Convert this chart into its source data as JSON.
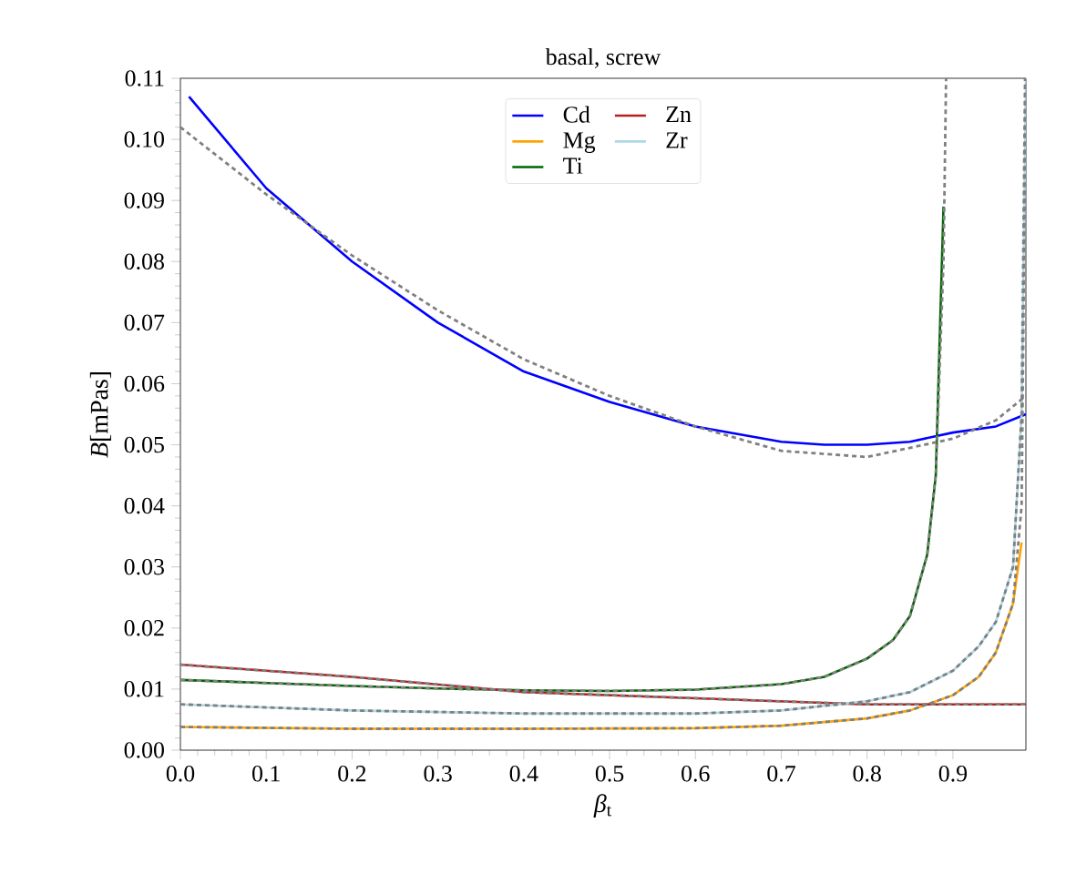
{
  "chart_data": {
    "type": "line",
    "title": "basal, screw",
    "xlabel": "*β*$_{t}$",
    "ylabel": "*B*[mPas]",
    "xlim": [
      0,
      0.985
    ],
    "ylim": [
      0,
      0.11
    ],
    "xticks": [
      {
        "value": 0,
        "label": "0.0"
      },
      {
        "value": 0.1,
        "label": "0.1"
      },
      {
        "value": 0.2,
        "label": "0.2"
      },
      {
        "value": 0.3,
        "label": "0.3"
      },
      {
        "value": 0.4,
        "label": "0.4"
      },
      {
        "value": 0.5,
        "label": "0.5"
      },
      {
        "value": 0.6,
        "label": "0.6"
      },
      {
        "value": 0.7,
        "label": "0.7"
      },
      {
        "value": 0.8,
        "label": "0.8"
      },
      {
        "value": 0.9,
        "label": "0.9"
      }
    ],
    "yticks": [
      {
        "value": 0,
        "label": "0.00"
      },
      {
        "value": 0.01,
        "label": "0.01"
      },
      {
        "value": 0.02,
        "label": "0.02"
      },
      {
        "value": 0.03,
        "label": "0.03"
      },
      {
        "value": 0.04,
        "label": "0.04"
      },
      {
        "value": 0.05,
        "label": "0.05"
      },
      {
        "value": 0.06,
        "label": "0.06"
      },
      {
        "value": 0.07,
        "label": "0.07"
      },
      {
        "value": 0.08,
        "label": "0.08"
      },
      {
        "value": 0.09,
        "label": "0.09"
      },
      {
        "value": 0.1,
        "label": "0.10"
      },
      {
        "value": 0.11,
        "label": "0.11"
      }
    ],
    "legend": "top",
    "line_style": "solid",
    "series": [
      {
        "name": "Cd",
        "color": "#0000ff",
        "x": [
          0.01,
          0.1,
          0.2,
          0.3,
          0.4,
          0.5,
          0.6,
          0.7,
          0.75,
          0.8,
          0.85,
          0.9,
          0.95,
          0.985
        ],
        "values": [
          0.107,
          0.092,
          0.08,
          0.07,
          0.062,
          0.057,
          0.053,
          0.0505,
          0.05,
          0.05,
          0.0505,
          0.052,
          0.053,
          0.055
        ]
      },
      {
        "name": "Mg",
        "color": "#ffa500",
        "x": [
          0,
          0.2,
          0.4,
          0.6,
          0.7,
          0.8,
          0.85,
          0.9,
          0.93,
          0.95,
          0.97,
          0.98
        ],
        "values": [
          0.0038,
          0.0035,
          0.0035,
          0.0036,
          0.004,
          0.0052,
          0.0065,
          0.009,
          0.012,
          0.016,
          0.024,
          0.034
        ]
      },
      {
        "name": "Ti",
        "color": "#006400",
        "x": [
          0,
          0.1,
          0.2,
          0.3,
          0.4,
          0.5,
          0.6,
          0.7,
          0.75,
          0.8,
          0.83,
          0.85,
          0.87,
          0.88,
          0.889
        ],
        "values": [
          0.0115,
          0.011,
          0.0105,
          0.0101,
          0.0098,
          0.0097,
          0.0099,
          0.0108,
          0.012,
          0.015,
          0.018,
          0.022,
          0.032,
          0.045,
          0.089
        ]
      },
      {
        "name": "Zn",
        "color": "#b22222",
        "x": [
          0,
          0.2,
          0.4,
          0.6,
          0.8,
          0.985
        ],
        "values": [
          0.014,
          0.012,
          0.0095,
          0.0085,
          0.0075,
          0.0075
        ]
      },
      {
        "name": "Zr",
        "color": "#add8e6",
        "x": [
          0,
          0.2,
          0.4,
          0.6,
          0.7,
          0.8,
          0.85,
          0.9,
          0.93,
          0.95,
          0.97,
          0.98,
          0.985
        ],
        "values": [
          0.0075,
          0.0065,
          0.006,
          0.006,
          0.0065,
          0.008,
          0.0095,
          0.013,
          0.017,
          0.021,
          0.03,
          0.055,
          0.11
        ]
      },
      {
        "color": "#808080",
        "line_style": "dotted",
        "x": [
          0,
          0.1,
          0.2,
          0.3,
          0.4,
          0.5,
          0.6,
          0.7,
          0.8,
          0.9,
          0.95,
          0.985
        ],
        "values": [
          0.102,
          0.091,
          0.081,
          0.072,
          0.064,
          0.058,
          0.053,
          0.049,
          0.048,
          0.051,
          0.054,
          0.058
        ]
      },
      {
        "color": "#808080",
        "line_style": "dotted",
        "x": [
          0,
          0.2,
          0.4,
          0.6,
          0.7,
          0.8,
          0.85,
          0.9,
          0.93,
          0.95,
          0.97,
          0.98,
          0.985
        ],
        "values": [
          0.0038,
          0.0035,
          0.0035,
          0.0036,
          0.004,
          0.0052,
          0.0065,
          0.009,
          0.012,
          0.016,
          0.024,
          0.04,
          0.11
        ]
      },
      {
        "color": "#808080",
        "line_style": "dotted",
        "x": [
          0,
          0.1,
          0.2,
          0.3,
          0.4,
          0.5,
          0.6,
          0.7,
          0.75,
          0.8,
          0.83,
          0.85,
          0.87,
          0.88,
          0.889,
          0.892
        ],
        "values": [
          0.0115,
          0.011,
          0.0105,
          0.0101,
          0.0098,
          0.0097,
          0.0099,
          0.0108,
          0.012,
          0.015,
          0.018,
          0.022,
          0.032,
          0.045,
          0.08,
          0.11
        ]
      },
      {
        "color": "#808080",
        "line_style": "dotted",
        "x": [
          0,
          0.2,
          0.4,
          0.6,
          0.8,
          0.985
        ],
        "values": [
          0.014,
          0.012,
          0.0095,
          0.0085,
          0.0075,
          0.0075
        ]
      },
      {
        "color": "#808080",
        "line_style": "dotted",
        "x": [
          0,
          0.2,
          0.4,
          0.6,
          0.7,
          0.8,
          0.85,
          0.9,
          0.93,
          0.95,
          0.97,
          0.98,
          0.984
        ],
        "values": [
          0.0075,
          0.0065,
          0.006,
          0.006,
          0.0065,
          0.008,
          0.0095,
          0.013,
          0.017,
          0.021,
          0.03,
          0.055,
          0.11
        ]
      }
    ]
  }
}
